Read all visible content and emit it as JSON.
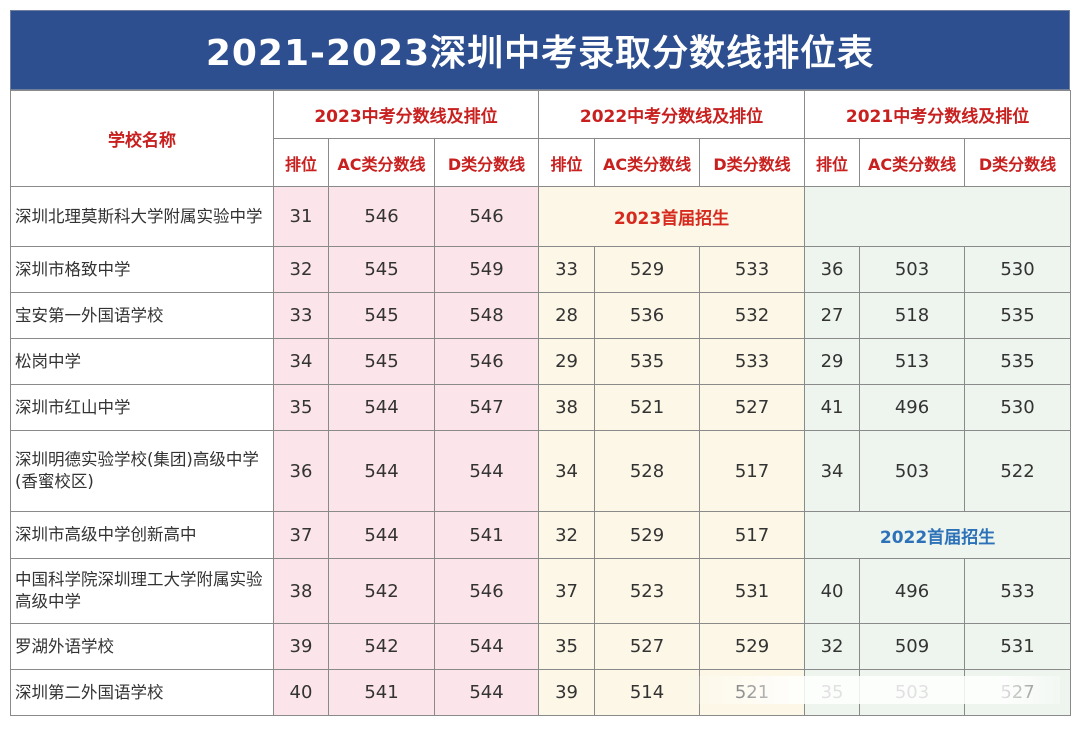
{
  "title": "2021-2023深圳中考录取分数线排位表",
  "headers": {
    "school": "学校名称",
    "year2023": "2023中考分数线及排位",
    "year2022": "2022中考分数线及排位",
    "year2021": "2021中考分数线及排位",
    "rank": "排位",
    "ac": "AC类分数线",
    "d": "D类分数线"
  },
  "notes": {
    "first2023": "2023首届招生",
    "first2022": "2022首届招生"
  },
  "rows": [
    {
      "name": "深圳北理莫斯科大学附属实验中学",
      "y23": [
        "31",
        "546",
        "546"
      ],
      "y22": null,
      "y21": null
    },
    {
      "name": "深圳市格致中学",
      "y23": [
        "32",
        "545",
        "549"
      ],
      "y22": [
        "33",
        "529",
        "533"
      ],
      "y21": [
        "36",
        "503",
        "530"
      ]
    },
    {
      "name": "宝安第一外国语学校",
      "y23": [
        "33",
        "545",
        "548"
      ],
      "y22": [
        "28",
        "536",
        "532"
      ],
      "y21": [
        "27",
        "518",
        "535"
      ]
    },
    {
      "name": "松岗中学",
      "y23": [
        "34",
        "545",
        "546"
      ],
      "y22": [
        "29",
        "535",
        "533"
      ],
      "y21": [
        "29",
        "513",
        "535"
      ]
    },
    {
      "name": "深圳市红山中学",
      "y23": [
        "35",
        "544",
        "547"
      ],
      "y22": [
        "38",
        "521",
        "527"
      ],
      "y21": [
        "41",
        "496",
        "530"
      ]
    },
    {
      "name": "深圳明德实验学校(集团)高级中学(香蜜校区)",
      "y23": [
        "36",
        "544",
        "544"
      ],
      "y22": [
        "34",
        "528",
        "517"
      ],
      "y21": [
        "34",
        "503",
        "522"
      ]
    },
    {
      "name": "深圳市高级中学创新高中",
      "y23": [
        "37",
        "544",
        "541"
      ],
      "y22": [
        "32",
        "529",
        "517"
      ],
      "y21": null
    },
    {
      "name": "中国科学院深圳理工大学附属实验高级中学",
      "y23": [
        "38",
        "542",
        "546"
      ],
      "y22": [
        "37",
        "523",
        "531"
      ],
      "y21": [
        "40",
        "496",
        "533"
      ]
    },
    {
      "name": "罗湖外语学校",
      "y23": [
        "39",
        "542",
        "544"
      ],
      "y22": [
        "35",
        "527",
        "529"
      ],
      "y21": [
        "32",
        "509",
        "531"
      ]
    },
    {
      "name": "深圳第二外国语学校",
      "y23": [
        "40",
        "541",
        "544"
      ],
      "y22": [
        "39",
        "514",
        "521"
      ],
      "y21": [
        "35",
        "503",
        "527"
      ]
    }
  ],
  "colors": {
    "title_bg": "#2e4f8f",
    "header_text": "#c8201f",
    "y2023_bg": "#fbe5ea",
    "y2022_bg": "#fcf7e6",
    "y2021_bg": "#eef5ee",
    "note_red": "#d72a1f",
    "note_blue": "#2d72b8"
  }
}
